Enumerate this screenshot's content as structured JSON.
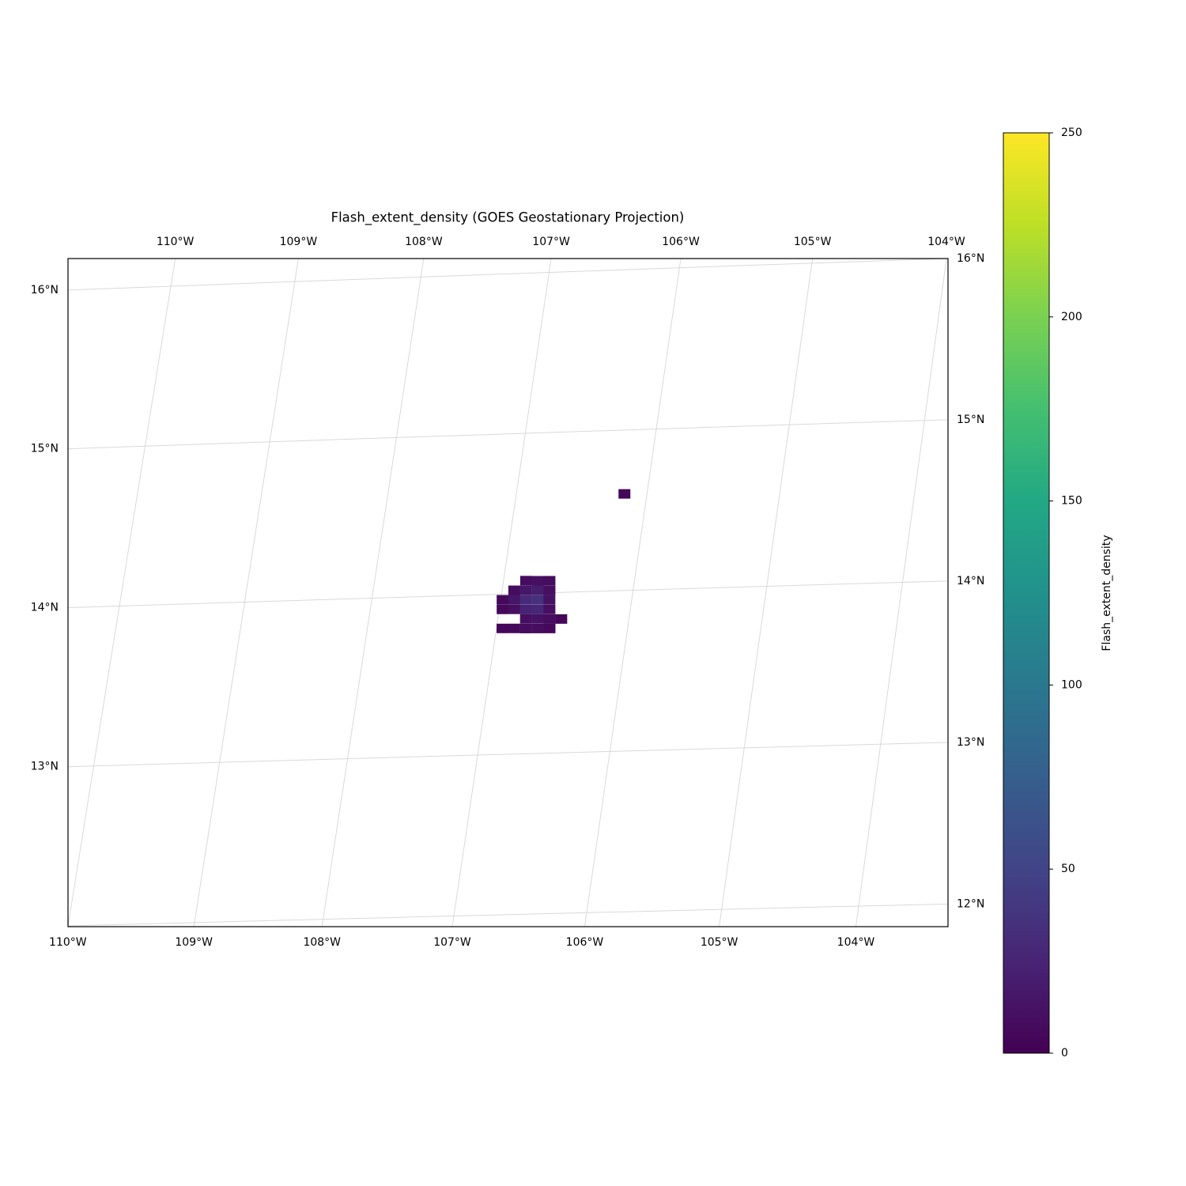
{
  "chart_data": {
    "type": "map",
    "title": "Flash_extent_density (GOES Geostationary Projection)",
    "grid": true,
    "ticks": {
      "top": [
        {
          "value": -110,
          "label": "110°W"
        },
        {
          "value": -109,
          "label": "109°W"
        },
        {
          "value": -108,
          "label": "108°W"
        },
        {
          "value": -107,
          "label": "107°W"
        },
        {
          "value": -106,
          "label": "106°W"
        },
        {
          "value": -105,
          "label": "105°W"
        },
        {
          "value": -104,
          "label": "104°W"
        }
      ],
      "bottom": [
        {
          "value": -110,
          "label": "110°W"
        },
        {
          "value": -109,
          "label": "109°W"
        },
        {
          "value": -108,
          "label": "108°W"
        },
        {
          "value": -107,
          "label": "107°W"
        },
        {
          "value": -106,
          "label": "106°W"
        },
        {
          "value": -105,
          "label": "105°W"
        },
        {
          "value": -104,
          "label": "104°W"
        }
      ],
      "left": [
        {
          "value": 13,
          "label": "13°N"
        },
        {
          "value": 14,
          "label": "14°N"
        },
        {
          "value": 15,
          "label": "15°N"
        },
        {
          "value": 16,
          "label": "16°N"
        }
      ],
      "right": [
        {
          "value": 12,
          "label": "12°N"
        },
        {
          "value": 13,
          "label": "13°N"
        },
        {
          "value": 14,
          "label": "14°N"
        },
        {
          "value": 15,
          "label": "15°N"
        },
        {
          "value": 16,
          "label": "16°N"
        }
      ]
    },
    "cells": {
      "lon": [
        -106.826,
        -106.737,
        -106.647,
        -106.906,
        -106.816,
        -106.726,
        -106.636,
        -106.985,
        -106.895,
        -106.805,
        -106.715,
        -106.626,
        -106.974,
        -106.884,
        -106.795,
        -106.705,
        -106.615,
        -106.784,
        -106.694,
        -106.604,
        -106.514,
        -106.953,
        -106.863,
        -106.773,
        -106.683,
        -106.593,
        -106.171
      ],
      "lat": [
        14.08,
        14.077,
        14.075,
        14.022,
        14.02,
        14.018,
        14.015,
        13.965,
        13.963,
        13.96,
        13.958,
        13.956,
        13.905,
        13.903,
        13.9,
        13.898,
        13.896,
        13.841,
        13.839,
        13.836,
        13.834,
        13.786,
        13.784,
        13.781,
        13.779,
        13.777,
        14.602
      ],
      "values": [
        8,
        10,
        8,
        8,
        15,
        20,
        10,
        5,
        15,
        30,
        35,
        12,
        5,
        10,
        25,
        28,
        10,
        10,
        12,
        8,
        4,
        4,
        6,
        8,
        8,
        5,
        4
      ]
    },
    "colorbar": {
      "label": "Flash_extent_density",
      "cmap": "viridis",
      "lim": [
        0,
        250
      ],
      "ticks": [
        0,
        50,
        100,
        150,
        200,
        250
      ]
    }
  }
}
